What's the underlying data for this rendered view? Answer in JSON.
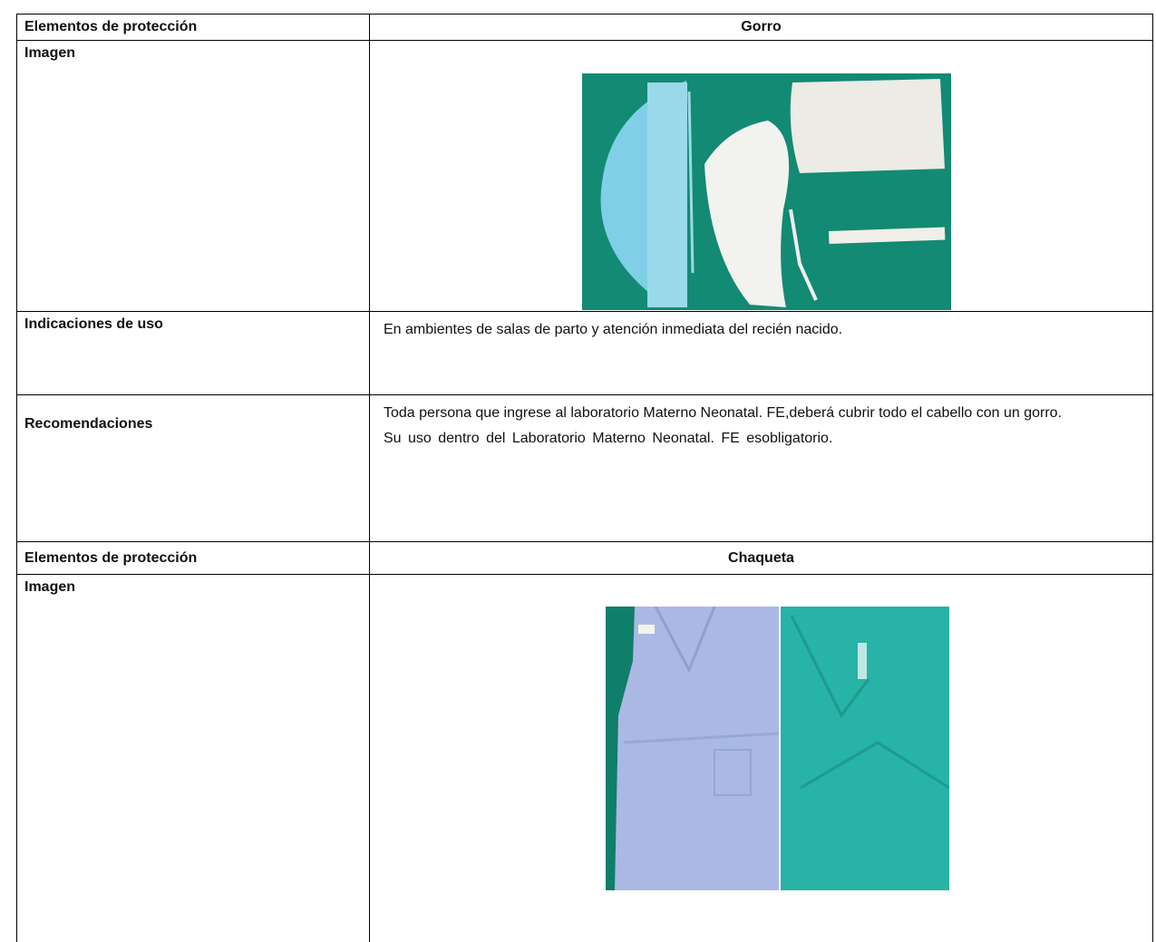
{
  "table": {
    "rows": [
      [
        "Elementos de protección",
        "Gorro"
      ],
      [
        "Imagen"
      ],
      [
        "Indicaciones de uso",
        "En ambientes de salas de parto y atención inmediata del recién nacido."
      ],
      [
        "Recomendaciones",
        "Toda persona que ingrese al laboratorio Materno Neonatal. FE,deberá cubrir todo el cabello con un gorro.",
        "Su uso dentro del Laboratorio Materno Neonatal. FE esobligatorio."
      ],
      [
        "Elementos de protección",
        "Chaqueta"
      ],
      [
        "Imagen"
      ]
    ]
  }
}
